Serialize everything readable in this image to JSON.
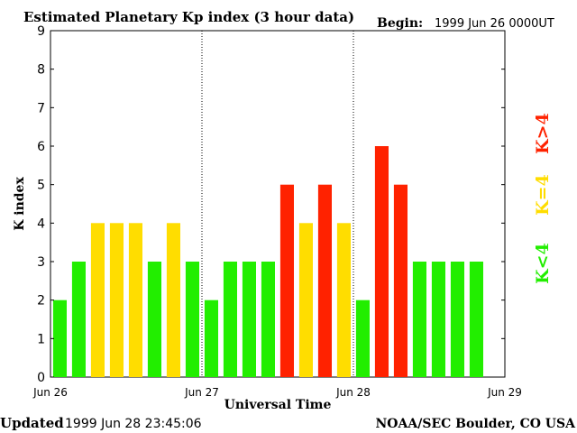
{
  "chart_data": {
    "type": "bar",
    "title": "Estimated Planetary Kp index (3 hour data)",
    "begin_label": "Begin:",
    "begin_value": "1999 Jun 26 0000UT",
    "xlabel": "Universal Time",
    "ylabel": "K index",
    "ylim": [
      0,
      9
    ],
    "yticks": [
      "0",
      "1",
      "2",
      "3",
      "4",
      "5",
      "6",
      "7",
      "8",
      "9"
    ],
    "xticks": [
      "Jun 26",
      "Jun 27",
      "Jun 28",
      "Jun 29"
    ],
    "values": [
      2,
      3,
      4,
      4,
      4,
      3,
      4,
      3,
      2,
      3,
      3,
      3,
      5,
      4,
      5,
      4,
      2,
      6,
      5,
      3,
      3,
      3,
      3
    ],
    "bar_colors": {
      "low": "#22ee00",
      "mid": "#ffdd00",
      "high": "#ff2200"
    },
    "legend": {
      "high": "K>4",
      "mid": "K=4",
      "low": "K<4"
    },
    "grid": false,
    "day_separators": true
  },
  "footer": {
    "updated_label": "Updated",
    "updated_value": "1999 Jun 28 23:45:06",
    "source": "NOAA/SEC Boulder, CO USA"
  }
}
